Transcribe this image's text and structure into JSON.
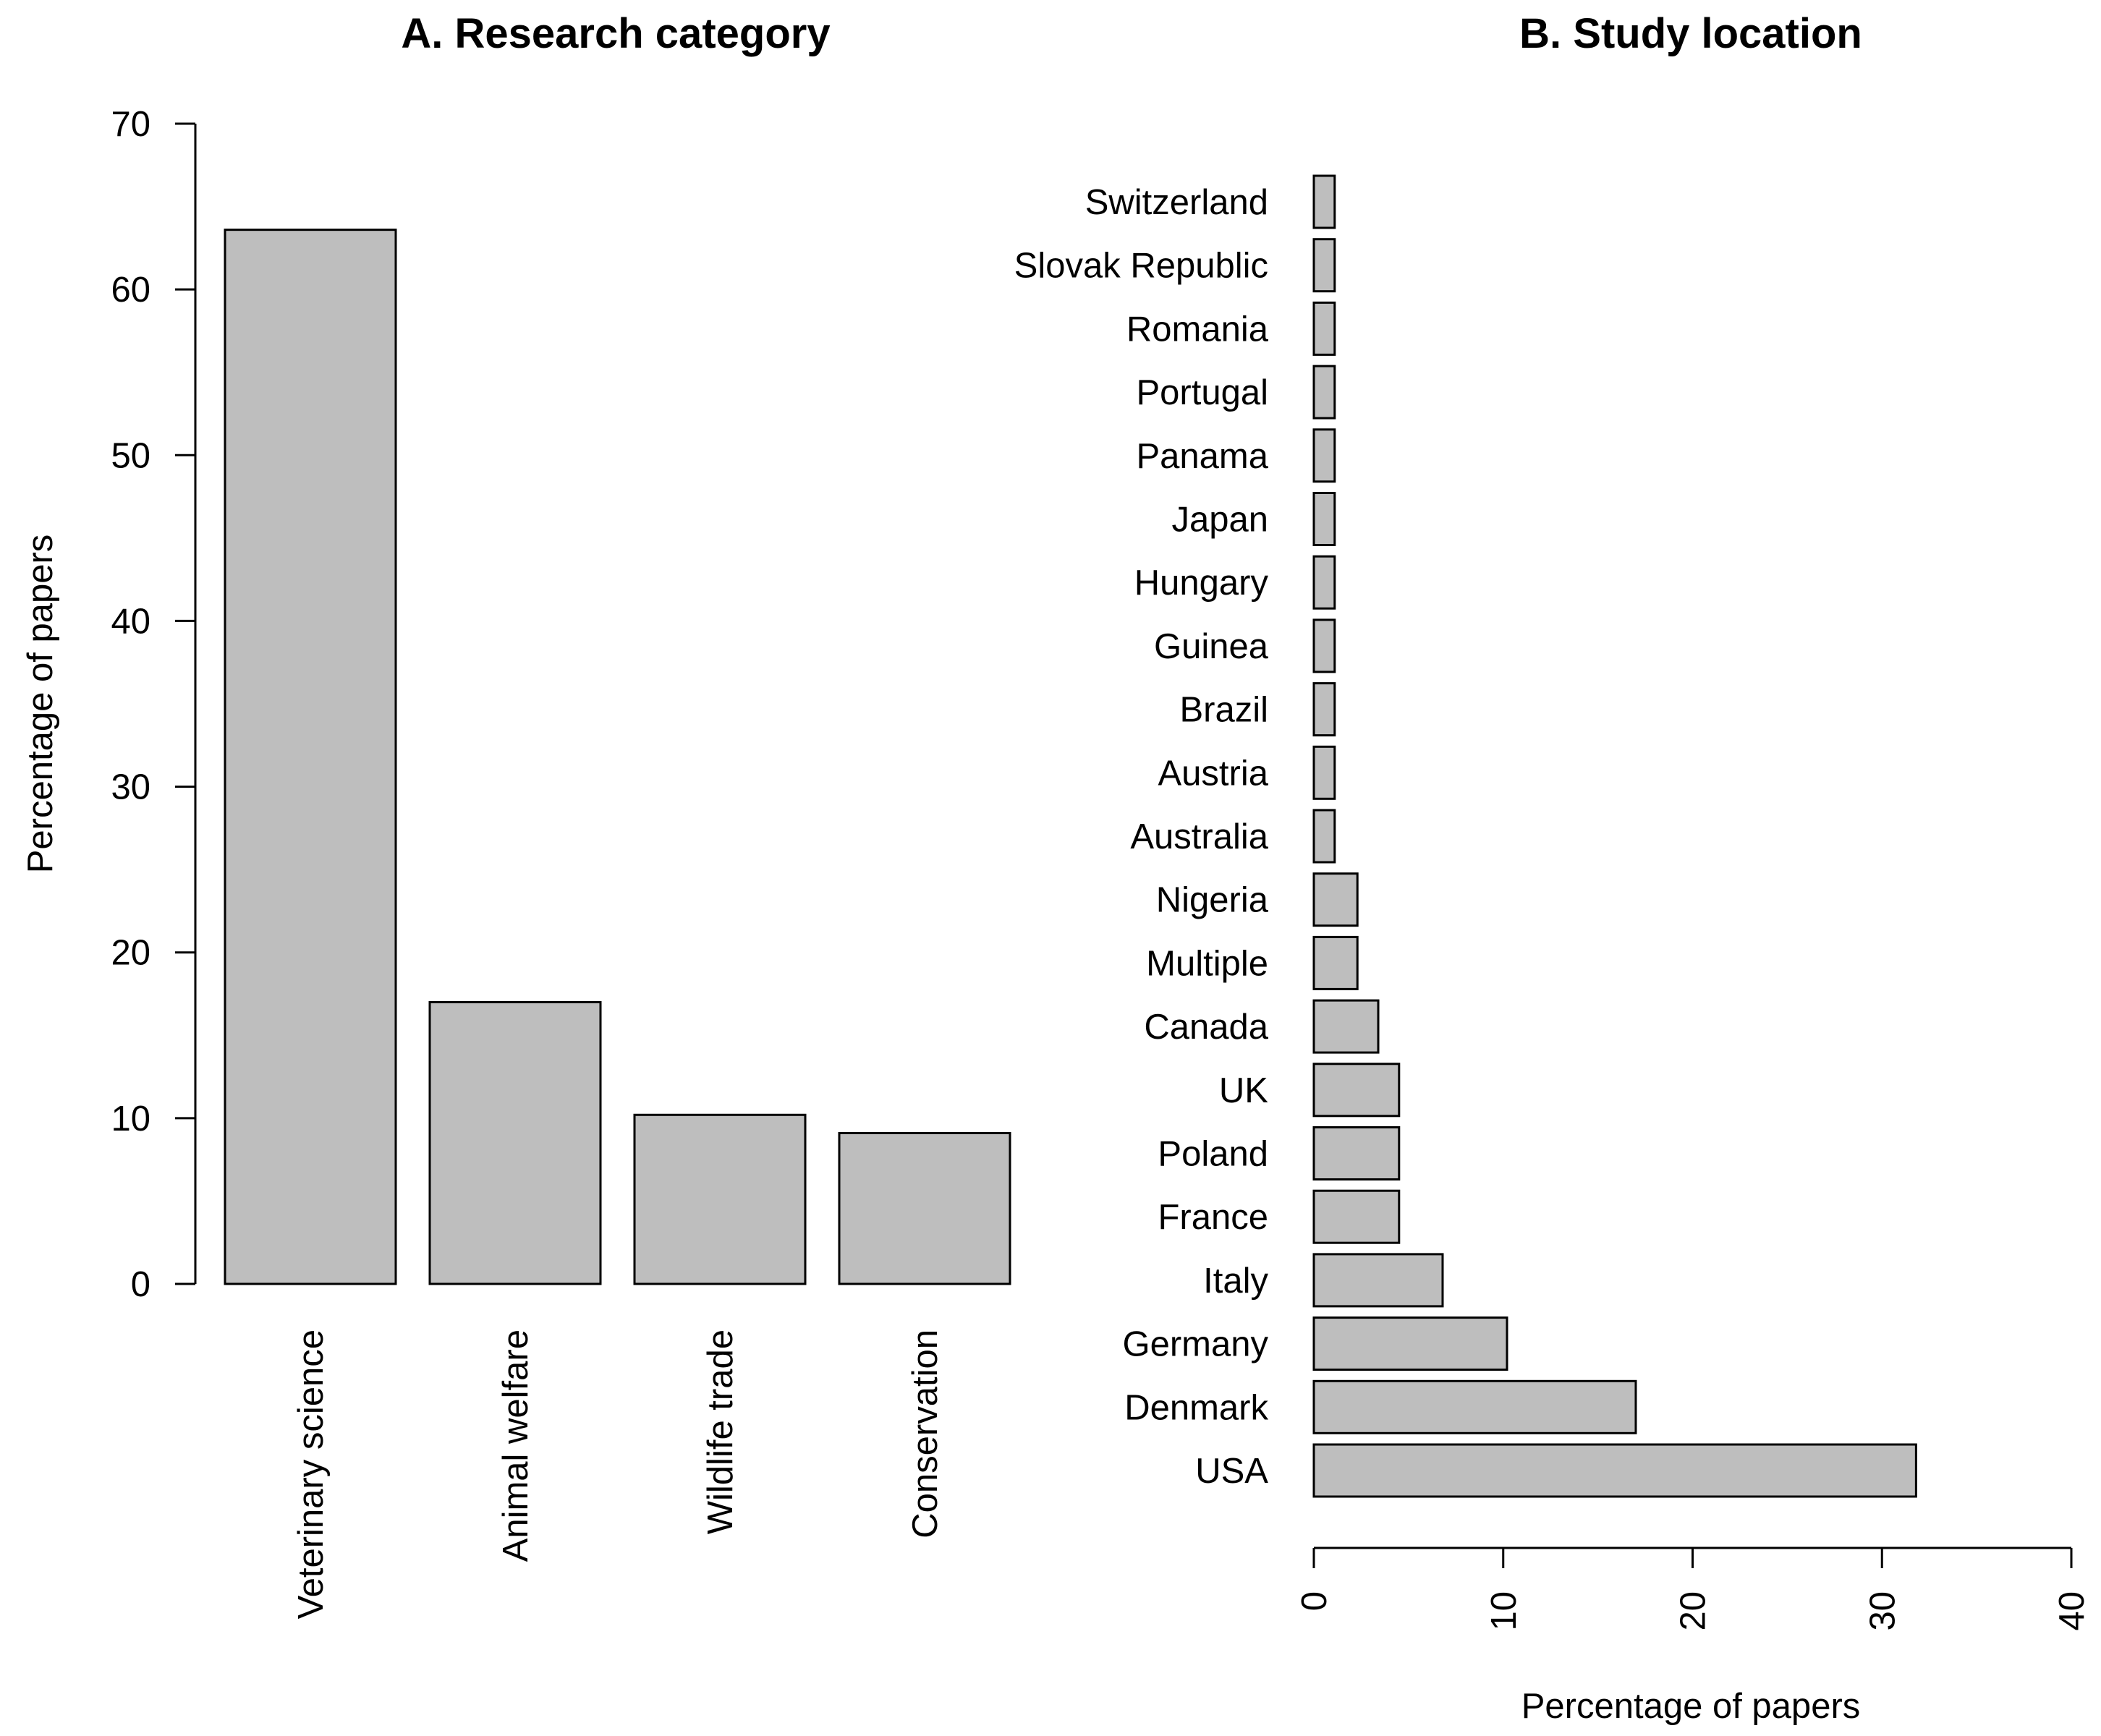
{
  "colors": {
    "bar_fill": "#bebebe",
    "bar_stroke": "#000000",
    "background": "#ffffff"
  },
  "chart_data": [
    {
      "type": "bar",
      "orientation": "vertical",
      "title": "A. Research category",
      "xlabel": "",
      "ylabel": "Percentage of papers",
      "ylim": [
        0,
        70
      ],
      "yticks": [
        0,
        10,
        20,
        30,
        40,
        50,
        60,
        70
      ],
      "categories": [
        "Veterinary science",
        "Animal welfare",
        "Wildlife trade",
        "Conservation"
      ],
      "values": [
        63.6,
        17.0,
        10.2,
        9.1
      ],
      "grid": false
    },
    {
      "type": "bar",
      "orientation": "horizontal",
      "title": "B. Study location",
      "xlabel": "Percentage of papers",
      "ylabel": "",
      "xlim": [
        0,
        40
      ],
      "xticks": [
        0,
        10,
        20,
        30,
        40
      ],
      "categories": [
        "USA",
        "Denmark",
        "Germany",
        "Italy",
        "France",
        "Poland",
        "UK",
        "Canada",
        "Multiple",
        "Nigeria",
        "Australia",
        "Austria",
        "Brazil",
        "Guinea",
        "Hungary",
        "Japan",
        "Panama",
        "Portugal",
        "Romania",
        "Slovak Republic",
        "Switzerland"
      ],
      "values": [
        31.8,
        17.0,
        10.2,
        6.8,
        4.5,
        4.5,
        4.5,
        3.4,
        2.3,
        2.3,
        1.1,
        1.1,
        1.1,
        1.1,
        1.1,
        1.1,
        1.1,
        1.1,
        1.1,
        1.1,
        1.1
      ],
      "grid": false
    }
  ]
}
